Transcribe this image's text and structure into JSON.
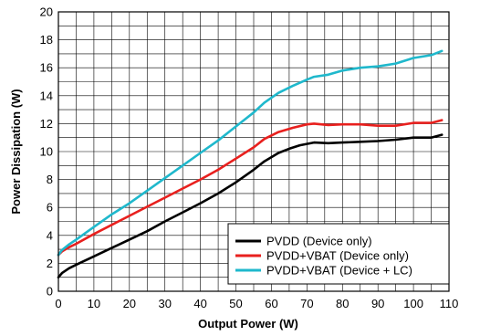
{
  "chart_data": {
    "type": "line",
    "title": "",
    "xlabel": "Output Power (W)",
    "ylabel": "Power Dissipation (W)",
    "xlim": [
      0,
      110
    ],
    "ylim": [
      0,
      20
    ],
    "xticks": [
      0,
      10,
      20,
      30,
      40,
      50,
      60,
      70,
      80,
      90,
      100,
      110
    ],
    "yticks": [
      0,
      2,
      4,
      6,
      8,
      10,
      12,
      14,
      16,
      18,
      20
    ],
    "grid": true,
    "legend_position": "bottom-right",
    "series": [
      {
        "name": "PVDD (Device only)",
        "color": "#000000",
        "x": [
          0,
          1,
          3,
          5,
          10,
          15,
          20,
          25,
          30,
          35,
          40,
          45,
          50,
          55,
          58,
          62,
          65,
          68,
          72,
          76,
          80,
          85,
          90,
          95,
          100,
          103,
          105,
          108
        ],
        "y": [
          1.0,
          1.3,
          1.65,
          1.9,
          2.5,
          3.1,
          3.7,
          4.3,
          5.0,
          5.65,
          6.3,
          7.0,
          7.8,
          8.7,
          9.3,
          9.9,
          10.2,
          10.45,
          10.65,
          10.6,
          10.65,
          10.7,
          10.75,
          10.85,
          11.0,
          11.0,
          11.0,
          11.2
        ]
      },
      {
        "name": "PVDD+VBAT (Device only)",
        "color": "#e8201e",
        "x": [
          0,
          1,
          3,
          5,
          10,
          15,
          20,
          25,
          30,
          35,
          40,
          45,
          50,
          55,
          58,
          62,
          66,
          70,
          72,
          76,
          80,
          85,
          90,
          95,
          100,
          105,
          108
        ],
        "y": [
          2.6,
          2.85,
          3.15,
          3.4,
          4.1,
          4.75,
          5.4,
          6.05,
          6.7,
          7.35,
          8.0,
          8.7,
          9.5,
          10.3,
          10.9,
          11.4,
          11.7,
          11.95,
          12.0,
          11.9,
          11.95,
          11.95,
          11.85,
          11.85,
          12.05,
          12.05,
          12.25
        ]
      },
      {
        "name": "PVDD+VBAT (Device + LC)",
        "color": "#1fb8cc",
        "x": [
          0,
          1,
          3,
          5,
          10,
          15,
          20,
          25,
          30,
          35,
          40,
          45,
          50,
          55,
          58,
          62,
          66,
          70,
          72,
          76,
          80,
          85,
          90,
          95,
          100,
          105,
          108
        ],
        "y": [
          2.6,
          2.95,
          3.35,
          3.7,
          4.6,
          5.5,
          6.3,
          7.2,
          8.1,
          9.0,
          9.9,
          10.8,
          11.8,
          12.8,
          13.5,
          14.2,
          14.7,
          15.15,
          15.35,
          15.5,
          15.8,
          16.0,
          16.1,
          16.3,
          16.7,
          16.9,
          17.2
        ]
      }
    ]
  }
}
